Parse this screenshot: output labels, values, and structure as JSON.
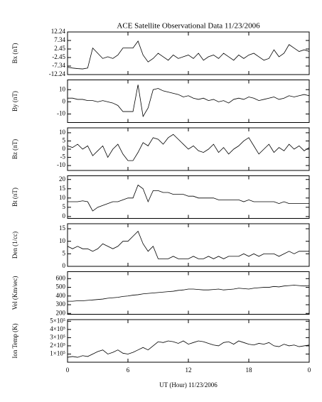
{
  "chart_data": [
    {
      "type": "line",
      "title": "ACE Satellite Observational Data   11/23/2006",
      "ylabel": "Bx (nT)",
      "color": "#000000",
      "ylim": [
        -12.24,
        12.24
      ],
      "yticks": [
        12.24,
        7.34,
        2.45,
        -2.45,
        -7.34,
        -12.24
      ],
      "x": [
        0,
        0.5,
        1,
        1.5,
        2,
        2.5,
        3,
        3.5,
        4,
        4.5,
        5,
        5.5,
        6,
        6.5,
        7,
        7.5,
        8,
        8.5,
        9,
        9.5,
        10,
        10.5,
        11,
        11.5,
        12,
        12.5,
        13,
        13.5,
        14,
        14.5,
        15,
        15.5,
        16,
        16.5,
        17,
        17.5,
        18,
        18.5,
        19,
        19.5,
        20,
        20.5,
        21,
        21.5,
        22,
        22.5,
        23,
        23.5,
        24
      ],
      "values": [
        -8,
        -8.5,
        -8.8,
        -9,
        -8.5,
        3,
        0,
        -3,
        -2,
        -3,
        -1,
        3,
        3,
        3,
        7,
        -1,
        -5,
        -3,
        0,
        -2,
        -4,
        -1,
        -3,
        -2,
        -1,
        -3,
        0,
        -4,
        -2,
        -1,
        -3,
        0,
        -2,
        -4,
        -1,
        -3,
        -1,
        0,
        -2,
        -4,
        -3,
        2,
        -2,
        0,
        5,
        3,
        1,
        2,
        1
      ]
    },
    {
      "type": "line",
      "ylabel": "By (nT)",
      "color": "#000000",
      "ylim": [
        -17,
        18
      ],
      "yticks": [
        10,
        0,
        -10
      ],
      "x": [
        0,
        0.5,
        1,
        1.5,
        2,
        2.5,
        3,
        3.5,
        4,
        4.5,
        5,
        5.5,
        6,
        6.5,
        7,
        7.5,
        8,
        8.5,
        9,
        9.5,
        10,
        10.5,
        11,
        11.5,
        12,
        12.5,
        13,
        13.5,
        14,
        14.5,
        15,
        15.5,
        16,
        16.5,
        17,
        17.5,
        18,
        18.5,
        19,
        19.5,
        20,
        20.5,
        21,
        21.5,
        22,
        22.5,
        23,
        23.5,
        24
      ],
      "values": [
        3,
        3,
        2,
        2,
        1,
        1,
        0,
        1,
        0,
        -1,
        -3,
        -8,
        -8,
        -8,
        14,
        -12,
        -5,
        10,
        11,
        9,
        8,
        7,
        6,
        4,
        5,
        3,
        2,
        3,
        1,
        2,
        0,
        1,
        -1,
        2,
        3,
        2,
        4,
        3,
        1,
        2,
        3,
        4,
        2,
        3,
        5,
        4,
        5,
        6,
        5
      ]
    },
    {
      "type": "line",
      "ylabel": "Bz (nT)",
      "color": "#000000",
      "ylim": [
        -13,
        13
      ],
      "yticks": [
        10,
        5,
        0,
        -5,
        -10
      ],
      "x": [
        0,
        0.5,
        1,
        1.5,
        2,
        2.5,
        3,
        3.5,
        4,
        4.5,
        5,
        5.5,
        6,
        6.5,
        7,
        7.5,
        8,
        8.5,
        9,
        9.5,
        10,
        10.5,
        11,
        11.5,
        12,
        12.5,
        13,
        13.5,
        14,
        14.5,
        15,
        15.5,
        16,
        16.5,
        17,
        17.5,
        18,
        18.5,
        19,
        19.5,
        20,
        20.5,
        21,
        21.5,
        22,
        22.5,
        23,
        23.5,
        24
      ],
      "values": [
        2,
        1,
        3,
        0,
        2,
        -4,
        -1,
        2,
        -5,
        0,
        3,
        -3,
        -7,
        -7,
        -2,
        4,
        2,
        7,
        6,
        3,
        7,
        9,
        6,
        3,
        0,
        2,
        -1,
        -2,
        0,
        3,
        -2,
        1,
        -3,
        0,
        2,
        5,
        7,
        2,
        -3,
        0,
        3,
        -2,
        1,
        -1,
        3,
        0,
        2,
        -1,
        1
      ]
    },
    {
      "type": "line",
      "ylabel": "Bt (nT)",
      "color": "#000000",
      "ylim": [
        -1,
        22
      ],
      "yticks": [
        0,
        5,
        10,
        15,
        20
      ],
      "x": [
        0,
        0.5,
        1,
        1.5,
        2,
        2.5,
        3,
        3.5,
        4,
        4.5,
        5,
        5.5,
        6,
        6.5,
        7,
        7.5,
        8,
        8.5,
        9,
        9.5,
        10,
        10.5,
        11,
        11.5,
        12,
        12.5,
        13,
        13.5,
        14,
        14.5,
        15,
        15.5,
        16,
        16.5,
        17,
        17.5,
        18,
        18.5,
        19,
        19.5,
        20,
        20.5,
        21,
        21.5,
        22,
        22.5,
        23,
        23.5,
        24
      ],
      "values": [
        8,
        8,
        8,
        8.5,
        8,
        3,
        5,
        6,
        7,
        8,
        8,
        9,
        10,
        10,
        17,
        15,
        8,
        14,
        14,
        13,
        13,
        12,
        12,
        12,
        11,
        11,
        10,
        10,
        10,
        10,
        9,
        9,
        9,
        9,
        9,
        8,
        9,
        8,
        8,
        8,
        8,
        8,
        7,
        8,
        7,
        7,
        7,
        7,
        7
      ]
    },
    {
      "type": "line",
      "ylabel": "Den (1/cc)",
      "color": "#000000",
      "ylim": [
        0,
        17
      ],
      "yticks": [
        0,
        5,
        10,
        15
      ],
      "x": [
        0,
        0.5,
        1,
        1.5,
        2,
        2.5,
        3,
        3.5,
        4,
        4.5,
        5,
        5.5,
        6,
        6.5,
        7,
        7.5,
        8,
        8.5,
        9,
        9.5,
        10,
        10.5,
        11,
        11.5,
        12,
        12.5,
        13,
        13.5,
        14,
        14.5,
        15,
        15.5,
        16,
        16.5,
        17,
        17.5,
        18,
        18.5,
        19,
        19.5,
        20,
        20.5,
        21,
        21.5,
        22,
        22.5,
        23,
        23.5,
        24
      ],
      "values": [
        8,
        7,
        8,
        7,
        7,
        6,
        7,
        9,
        8,
        7,
        8,
        10,
        10,
        12,
        14,
        9,
        6,
        8,
        3,
        3,
        3,
        4,
        3,
        3,
        3,
        4,
        3,
        3,
        4,
        3,
        4,
        3,
        4,
        4,
        4,
        5,
        4,
        5,
        4,
        5,
        5,
        5,
        4,
        5,
        6,
        5,
        6,
        6,
        6
      ]
    },
    {
      "type": "line",
      "ylabel": "Vel (Km/sec)",
      "color": "#000000",
      "ylim": [
        190,
        680
      ],
      "yticks": [
        200,
        300,
        400,
        500,
        600
      ],
      "x": [
        0,
        0.5,
        1,
        1.5,
        2,
        2.5,
        3,
        3.5,
        4,
        4.5,
        5,
        5.5,
        6,
        6.5,
        7,
        7.5,
        8,
        8.5,
        9,
        9.5,
        10,
        10.5,
        11,
        11.5,
        12,
        12.5,
        13,
        13.5,
        14,
        14.5,
        15,
        15.5,
        16,
        16.5,
        17,
        17.5,
        18,
        18.5,
        19,
        19.5,
        20,
        20.5,
        21,
        21.5,
        22,
        22.5,
        23,
        23.5,
        24
      ],
      "values": [
        340,
        340,
        345,
        345,
        350,
        355,
        360,
        365,
        375,
        380,
        385,
        395,
        400,
        410,
        415,
        425,
        430,
        435,
        440,
        445,
        450,
        455,
        465,
        470,
        480,
        480,
        475,
        470,
        470,
        475,
        480,
        470,
        475,
        480,
        490,
        485,
        480,
        490,
        495,
        500,
        500,
        510,
        505,
        515,
        520,
        525,
        520,
        515,
        520
      ]
    },
    {
      "type": "line",
      "ylabel": "Ion Temp (K)",
      "xlabel": "UT (Hour)  11/23/2006",
      "color": "#000000",
      "ylim": [
        0,
        520000
      ],
      "yticks": [
        {
          "value": 100000,
          "label": "1×10⁵"
        },
        {
          "value": 200000,
          "label": "2×10⁵"
        },
        {
          "value": 300000,
          "label": "3×10⁵"
        },
        {
          "value": 400000,
          "label": "4×10⁵"
        },
        {
          "value": 500000,
          "label": "5×10⁵"
        }
      ],
      "xlim": [
        0,
        24
      ],
      "xticks": [
        0,
        6,
        12,
        18,
        {
          "value": 24,
          "label": "0"
        }
      ],
      "x": [
        0,
        0.5,
        1,
        1.5,
        2,
        2.5,
        3,
        3.5,
        4,
        4.5,
        5,
        5.5,
        6,
        6.5,
        7,
        7.5,
        8,
        8.5,
        9,
        9.5,
        10,
        10.5,
        11,
        11.5,
        12,
        12.5,
        13,
        13.5,
        14,
        14.5,
        15,
        15.5,
        16,
        16.5,
        17,
        17.5,
        18,
        18.5,
        19,
        19.5,
        20,
        20.5,
        21,
        21.5,
        22,
        22.5,
        23,
        23.5,
        24
      ],
      "values": [
        60000,
        70000,
        60000,
        80000,
        70000,
        100000,
        130000,
        150000,
        100000,
        120000,
        150000,
        110000,
        100000,
        120000,
        150000,
        180000,
        150000,
        200000,
        250000,
        240000,
        260000,
        250000,
        230000,
        260000,
        220000,
        240000,
        260000,
        250000,
        230000,
        210000,
        200000,
        240000,
        250000,
        220000,
        260000,
        240000,
        220000,
        210000,
        230000,
        220000,
        240000,
        200000,
        190000,
        220000,
        200000,
        210000,
        190000,
        200000,
        210000
      ]
    }
  ]
}
